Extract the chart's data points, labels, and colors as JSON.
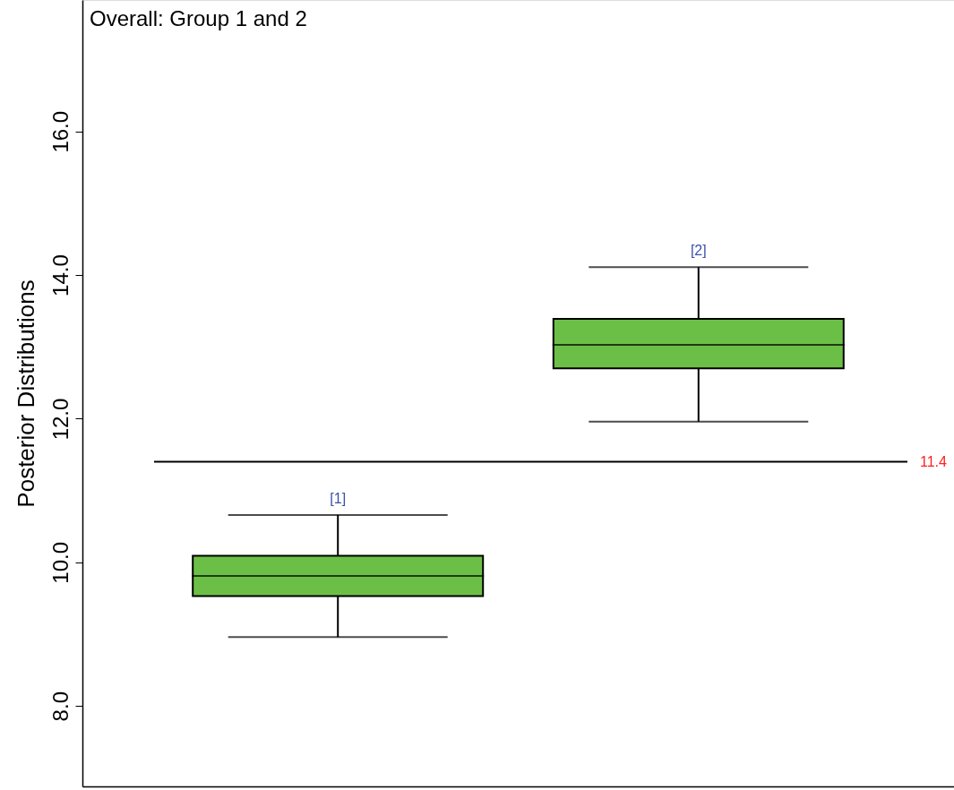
{
  "chart_data": {
    "type": "box",
    "title": "Overall: Group 1 and 2",
    "ylabel": "Posterior Distributions",
    "categories": [
      "[1]",
      "[2]"
    ],
    "boxes": [
      {
        "low": 8.96,
        "q1": 9.53,
        "median": 9.81,
        "q3": 10.09,
        "high": 10.66
      },
      {
        "low": 11.96,
        "q1": 12.7,
        "median": 13.03,
        "q3": 13.39,
        "high": 14.11
      }
    ],
    "color": "#6cbf46",
    "ylim": [
      6.88,
      17.83
    ],
    "yticks": [
      {
        "value": 8,
        "label": "8.0"
      },
      {
        "value": 10,
        "label": "10.0"
      },
      {
        "value": 12,
        "label": "12.0"
      },
      {
        "value": 14,
        "label": "14.0"
      },
      {
        "value": 16,
        "label": "16.0"
      }
    ],
    "ref_lines": [
      {
        "axis": "y",
        "value": 11.4,
        "label": "11.4",
        "color": "#000000"
      }
    ],
    "grid": false,
    "tick_labels": "y"
  }
}
